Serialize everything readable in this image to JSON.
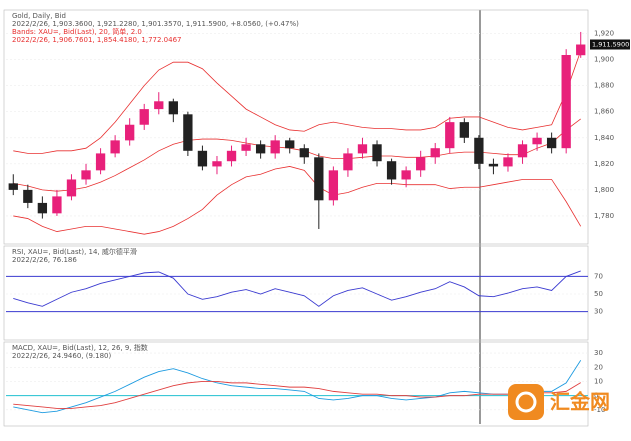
{
  "chart_data": [
    {
      "type": "candlestick",
      "title": "Gold, Daily, Bid",
      "subtitle": "2022/2/26, 1,903.3600, 1,921.2280, 1,901.3570, 1,911.5900, +8.0560, (+0.47%)",
      "band_title": "Bands: XAU=, Bid(Last), 20, 简单, 2.0",
      "band_values": "2022/2/26, 1,906.7601, 1,854.4180, 1,772.0467",
      "last_price_label": "1,911.5900",
      "up_color": "#e8207a",
      "down_color": "#222222",
      "band_color": "#e83030",
      "open": [
        1805,
        1800,
        1790,
        1782,
        1795,
        1808,
        1815,
        1828,
        1838,
        1850,
        1862,
        1868,
        1858,
        1830,
        1818,
        1822,
        1830,
        1835,
        1828,
        1838,
        1832,
        1825,
        1792,
        1815,
        1828,
        1835,
        1822,
        1808,
        1815,
        1825,
        1832,
        1852,
        1840,
        1820,
        1818,
        1825,
        1835,
        1840,
        1832,
        1903.36
      ],
      "high": [
        1812,
        1804,
        1795,
        1800,
        1812,
        1820,
        1832,
        1842,
        1855,
        1866,
        1875,
        1870,
        1860,
        1834,
        1826,
        1834,
        1840,
        1838,
        1842,
        1840,
        1835,
        1828,
        1818,
        1832,
        1840,
        1838,
        1824,
        1818,
        1830,
        1836,
        1856,
        1855,
        1842,
        1824,
        1828,
        1838,
        1844,
        1844,
        1908,
        1921.228
      ],
      "low": [
        1796,
        1786,
        1778,
        1780,
        1792,
        1804,
        1812,
        1825,
        1834,
        1846,
        1858,
        1852,
        1826,
        1815,
        1812,
        1818,
        1826,
        1824,
        1824,
        1828,
        1820,
        1770,
        1788,
        1810,
        1824,
        1818,
        1804,
        1802,
        1810,
        1820,
        1828,
        1836,
        1816,
        1812,
        1814,
        1820,
        1830,
        1828,
        1828,
        1901.357
      ],
      "close": [
        1800,
        1790,
        1782,
        1795,
        1808,
        1815,
        1828,
        1838,
        1850,
        1862,
        1868,
        1858,
        1830,
        1818,
        1822,
        1830,
        1835,
        1828,
        1838,
        1832,
        1825,
        1792,
        1815,
        1828,
        1835,
        1822,
        1808,
        1815,
        1825,
        1832,
        1852,
        1840,
        1820,
        1818,
        1825,
        1835,
        1840,
        1832,
        1903.53,
        1911.59
      ],
      "upper": [
        1830,
        1828,
        1828,
        1830,
        1830,
        1832,
        1840,
        1852,
        1866,
        1880,
        1892,
        1898,
        1898,
        1893,
        1882,
        1872,
        1862,
        1856,
        1850,
        1846,
        1845,
        1850,
        1852,
        1850,
        1848,
        1847,
        1847,
        1846,
        1846,
        1848,
        1855,
        1856,
        1856,
        1852,
        1848,
        1846,
        1848,
        1850,
        1875,
        1906.76
      ],
      "middle": [
        1805,
        1803,
        1800,
        1799,
        1800,
        1802,
        1806,
        1811,
        1817,
        1823,
        1830,
        1835,
        1838,
        1839,
        1839,
        1838,
        1836,
        1834,
        1833,
        1832,
        1830,
        1826,
        1824,
        1824,
        1825,
        1826,
        1826,
        1825,
        1825,
        1826,
        1828,
        1829,
        1829,
        1828,
        1827,
        1827,
        1832,
        1836,
        1846,
        1854.42
      ],
      "lower": [
        1780,
        1778,
        1772,
        1768,
        1770,
        1772,
        1772,
        1770,
        1768,
        1766,
        1768,
        1772,
        1778,
        1785,
        1796,
        1804,
        1810,
        1812,
        1816,
        1818,
        1815,
        1802,
        1796,
        1798,
        1802,
        1805,
        1805,
        1804,
        1804,
        1804,
        1801,
        1802,
        1802,
        1804,
        1806,
        1808,
        1808,
        1808,
        1791,
        1772.05
      ],
      "ylim": [
        1760,
        1935
      ],
      "yticks": [
        {
          "value": 1780,
          "label": "1,780"
        },
        {
          "value": 1800,
          "label": "1,800"
        },
        {
          "value": 1820,
          "label": "1,820"
        },
        {
          "value": 1840,
          "label": "1,840"
        },
        {
          "value": 1860,
          "label": "1,860"
        },
        {
          "value": 1880,
          "label": "1,880"
        },
        {
          "value": 1900,
          "label": "1,900"
        },
        {
          "value": 1920,
          "label": "1,920"
        }
      ]
    },
    {
      "type": "line",
      "title": "RSI, XAU=, Bid(Last), 14, 威尔德平滑",
      "subtitle": "2022/2/26, 76.186",
      "series": [
        {
          "color": "#3a3ad0",
          "values": [
            45,
            40,
            36,
            44,
            52,
            56,
            62,
            66,
            70,
            74,
            75,
            68,
            50,
            44,
            47,
            52,
            55,
            50,
            56,
            52,
            48,
            36,
            48,
            54,
            57,
            50,
            43,
            47,
            52,
            56,
            64,
            58,
            48,
            47,
            51,
            56,
            58,
            54,
            70,
            76.186
          ]
        }
      ],
      "levels": [
        30,
        70
      ],
      "level_color": "#3a3ad0",
      "ylim": [
        0,
        100
      ],
      "yticks": [
        30,
        50,
        70
      ]
    },
    {
      "type": "line",
      "title": "MACD, XAU=, Bid(Last), 12, 26, 9, 指数",
      "subtitle": "2022/2/26, 24.9460, (9.180)",
      "series": [
        {
          "color": "#1e9be0",
          "values": [
            -8,
            -10,
            -12,
            -11,
            -8,
            -5,
            -1,
            3,
            8,
            13,
            17,
            19,
            16,
            12,
            9,
            7,
            6,
            5,
            5,
            4,
            3,
            -2,
            -3,
            -2,
            0,
            0,
            -2,
            -3,
            -2,
            -1,
            2,
            3,
            2,
            1,
            1,
            2,
            3,
            3,
            9,
            24.946
          ]
        },
        {
          "color": "#e04040",
          "values": [
            -6,
            -7,
            -8,
            -9,
            -9,
            -8,
            -7,
            -5,
            -2,
            1,
            4,
            7,
            9,
            10,
            10,
            9,
            9,
            8,
            7,
            6,
            6,
            5,
            3,
            2,
            1,
            1,
            0,
            0,
            -1,
            -1,
            0,
            0,
            1,
            1,
            1,
            1,
            2,
            2,
            3,
            9.18
          ]
        }
      ],
      "levels": [
        0
      ],
      "level_color": "#20c0d0",
      "ylim": [
        -20,
        35
      ],
      "yticks": [
        -10,
        0,
        10,
        20,
        30
      ]
    }
  ],
  "watermark": "汇金网"
}
